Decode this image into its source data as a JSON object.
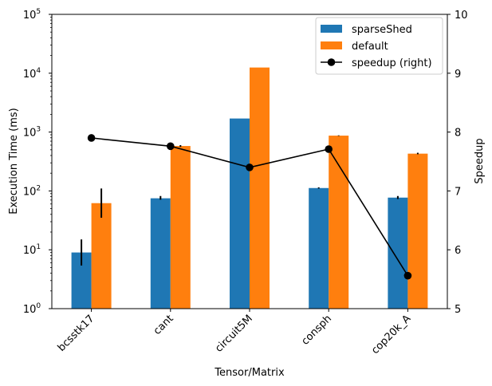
{
  "chart_data": {
    "type": "bar",
    "title": "",
    "xlabel": "Tensor/Matrix",
    "ylabel": "Execution Time (ms)",
    "y2label": "Speedup",
    "yscale": "log",
    "ylim": [
      1,
      100000
    ],
    "y_ticks": [
      1,
      10,
      100,
      1000,
      10000,
      100000
    ],
    "y_tick_labels": [
      {
        "base": "10",
        "exp": "0"
      },
      {
        "base": "10",
        "exp": "1"
      },
      {
        "base": "10",
        "exp": "2"
      },
      {
        "base": "10",
        "exp": "3"
      },
      {
        "base": "10",
        "exp": "4"
      },
      {
        "base": "10",
        "exp": "5"
      }
    ],
    "y2lim": [
      5,
      10
    ],
    "y2_ticks": [
      "5",
      "6",
      "7",
      "8",
      "9",
      "10"
    ],
    "categories": [
      "bcsstk17",
      "cant",
      "circuit5M",
      "consph",
      "cop20k_A"
    ],
    "series": [
      {
        "name": "sparseShed",
        "kind": "bar",
        "axis": "left",
        "color": "#1f77b4",
        "values": [
          9,
          75,
          1700,
          112,
          77
        ],
        "error_low": [
          5.4,
          71,
          1700,
          110,
          73
        ],
        "error_high": [
          15,
          82,
          1700,
          115,
          82
        ]
      },
      {
        "name": "default",
        "kind": "bar",
        "axis": "left",
        "color": "#ff7f0e",
        "values": [
          62,
          580,
          12500,
          870,
          430
        ],
        "error_low": [
          35,
          560,
          12500,
          860,
          420
        ],
        "error_high": [
          110,
          600,
          12500,
          880,
          445
        ]
      },
      {
        "name": "speedup (right)",
        "kind": "line",
        "axis": "right",
        "color": "#000000",
        "values": [
          7.9,
          7.76,
          7.4,
          7.71,
          5.56
        ]
      }
    ],
    "legend_position": "top-right",
    "grid": false
  }
}
